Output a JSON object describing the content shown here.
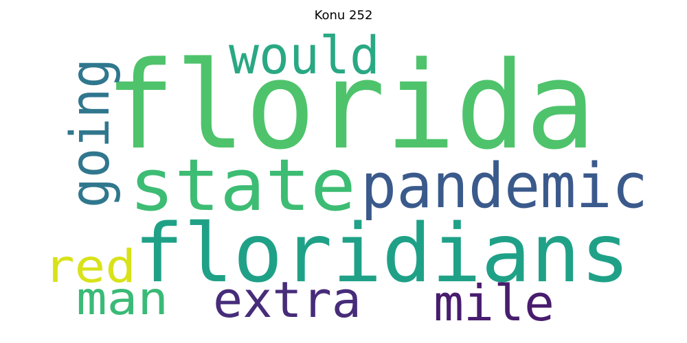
{
  "title": "Konu 252",
  "words": [
    {
      "text": "florida",
      "color": "#4ec36b"
    },
    {
      "text": "floridians",
      "color": "#1fa187"
    },
    {
      "text": "state",
      "color": "#3dbc74"
    },
    {
      "text": "pandemic",
      "color": "#3b5a8c"
    },
    {
      "text": "going",
      "color": "#30778e"
    },
    {
      "text": "would",
      "color": "#29a883"
    },
    {
      "text": "extra",
      "color": "#472c7a"
    },
    {
      "text": "mile",
      "color": "#481c6e"
    },
    {
      "text": "man",
      "color": "#3aba76"
    },
    {
      "text": "red",
      "color": "#d8e219"
    }
  ]
}
